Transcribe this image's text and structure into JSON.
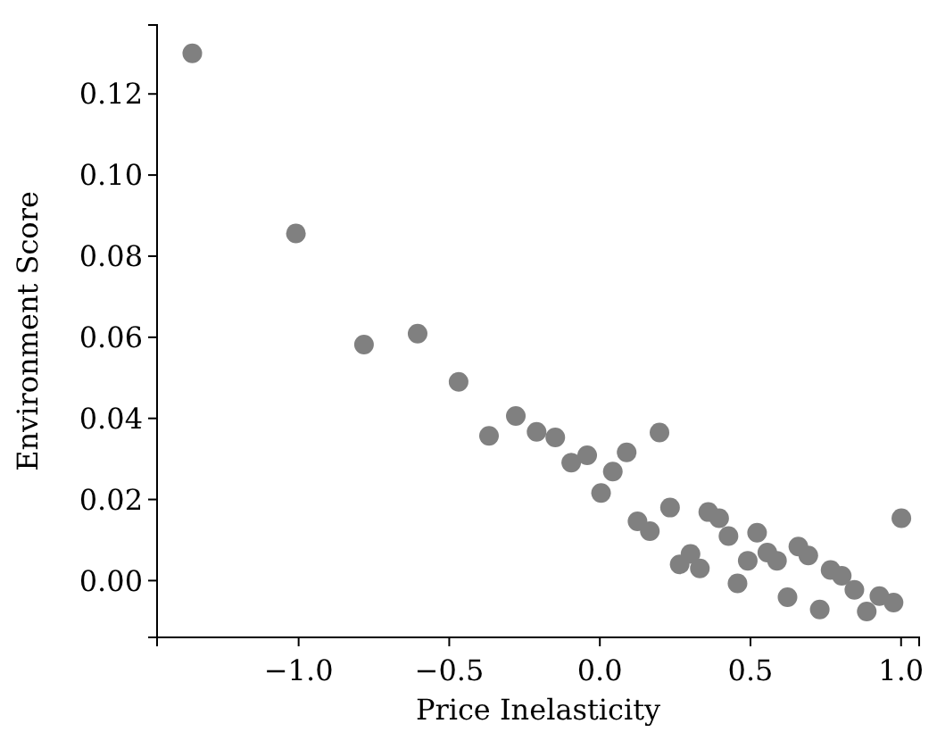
{
  "chart_data": {
    "type": "scatter",
    "xlabel": "Price Inelasticity",
    "ylabel": "Environment Score",
    "xlim": [
      -1.47,
      1.06
    ],
    "ylim": [
      -0.014,
      0.137
    ],
    "xticks": [
      {
        "value": -1,
        "label": "−1.0"
      },
      {
        "value": -0.5,
        "label": "−0.5"
      },
      {
        "value": 0,
        "label": "0.0"
      },
      {
        "value": 0.5,
        "label": "0.5"
      },
      {
        "value": 1,
        "label": "1.0"
      }
    ],
    "yticks": [
      {
        "value": 0,
        "label": "0.00"
      },
      {
        "value": 0.02,
        "label": "0.02"
      },
      {
        "value": 0.04,
        "label": "0.04"
      },
      {
        "value": 0.06,
        "label": "0.06"
      },
      {
        "value": 0.08,
        "label": "0.08"
      },
      {
        "value": 0.1,
        "label": "0.10"
      },
      {
        "value": 0.12,
        "label": "0.12"
      }
    ],
    "grid": false,
    "marker": "circle",
    "series": [
      {
        "color": "#808080",
        "x": [
          -1.353,
          -1.009,
          -0.783,
          -0.605,
          -0.469,
          -0.368,
          -0.279,
          -0.21,
          -0.148,
          -0.095,
          -0.042,
          0.043,
          0.004,
          0.089,
          0.198,
          0.125,
          0.166,
          0.233,
          0.265,
          0.301,
          0.332,
          0.36,
          0.396,
          0.427,
          0.457,
          0.491,
          0.522,
          0.556,
          0.588,
          0.623,
          0.659,
          0.692,
          0.73,
          0.766,
          0.803,
          0.845,
          0.886,
          0.928,
          0.975,
          1.001
        ],
        "values": [
          0.13,
          0.0856,
          0.0582,
          0.0609,
          0.049,
          0.0357,
          0.0406,
          0.0367,
          0.0353,
          0.0291,
          0.0309,
          0.0269,
          0.0216,
          0.0316,
          0.0365,
          0.0146,
          0.0122,
          0.018,
          0.004,
          0.0066,
          0.003,
          0.0169,
          0.0154,
          0.011,
          -0.0007,
          0.0049,
          0.0118,
          0.0069,
          0.0049,
          -0.0041,
          0.0084,
          0.0062,
          -0.0071,
          0.0026,
          0.0012,
          -0.0023,
          -0.0076,
          -0.0038,
          -0.0054,
          0.0154
        ]
      }
    ]
  }
}
